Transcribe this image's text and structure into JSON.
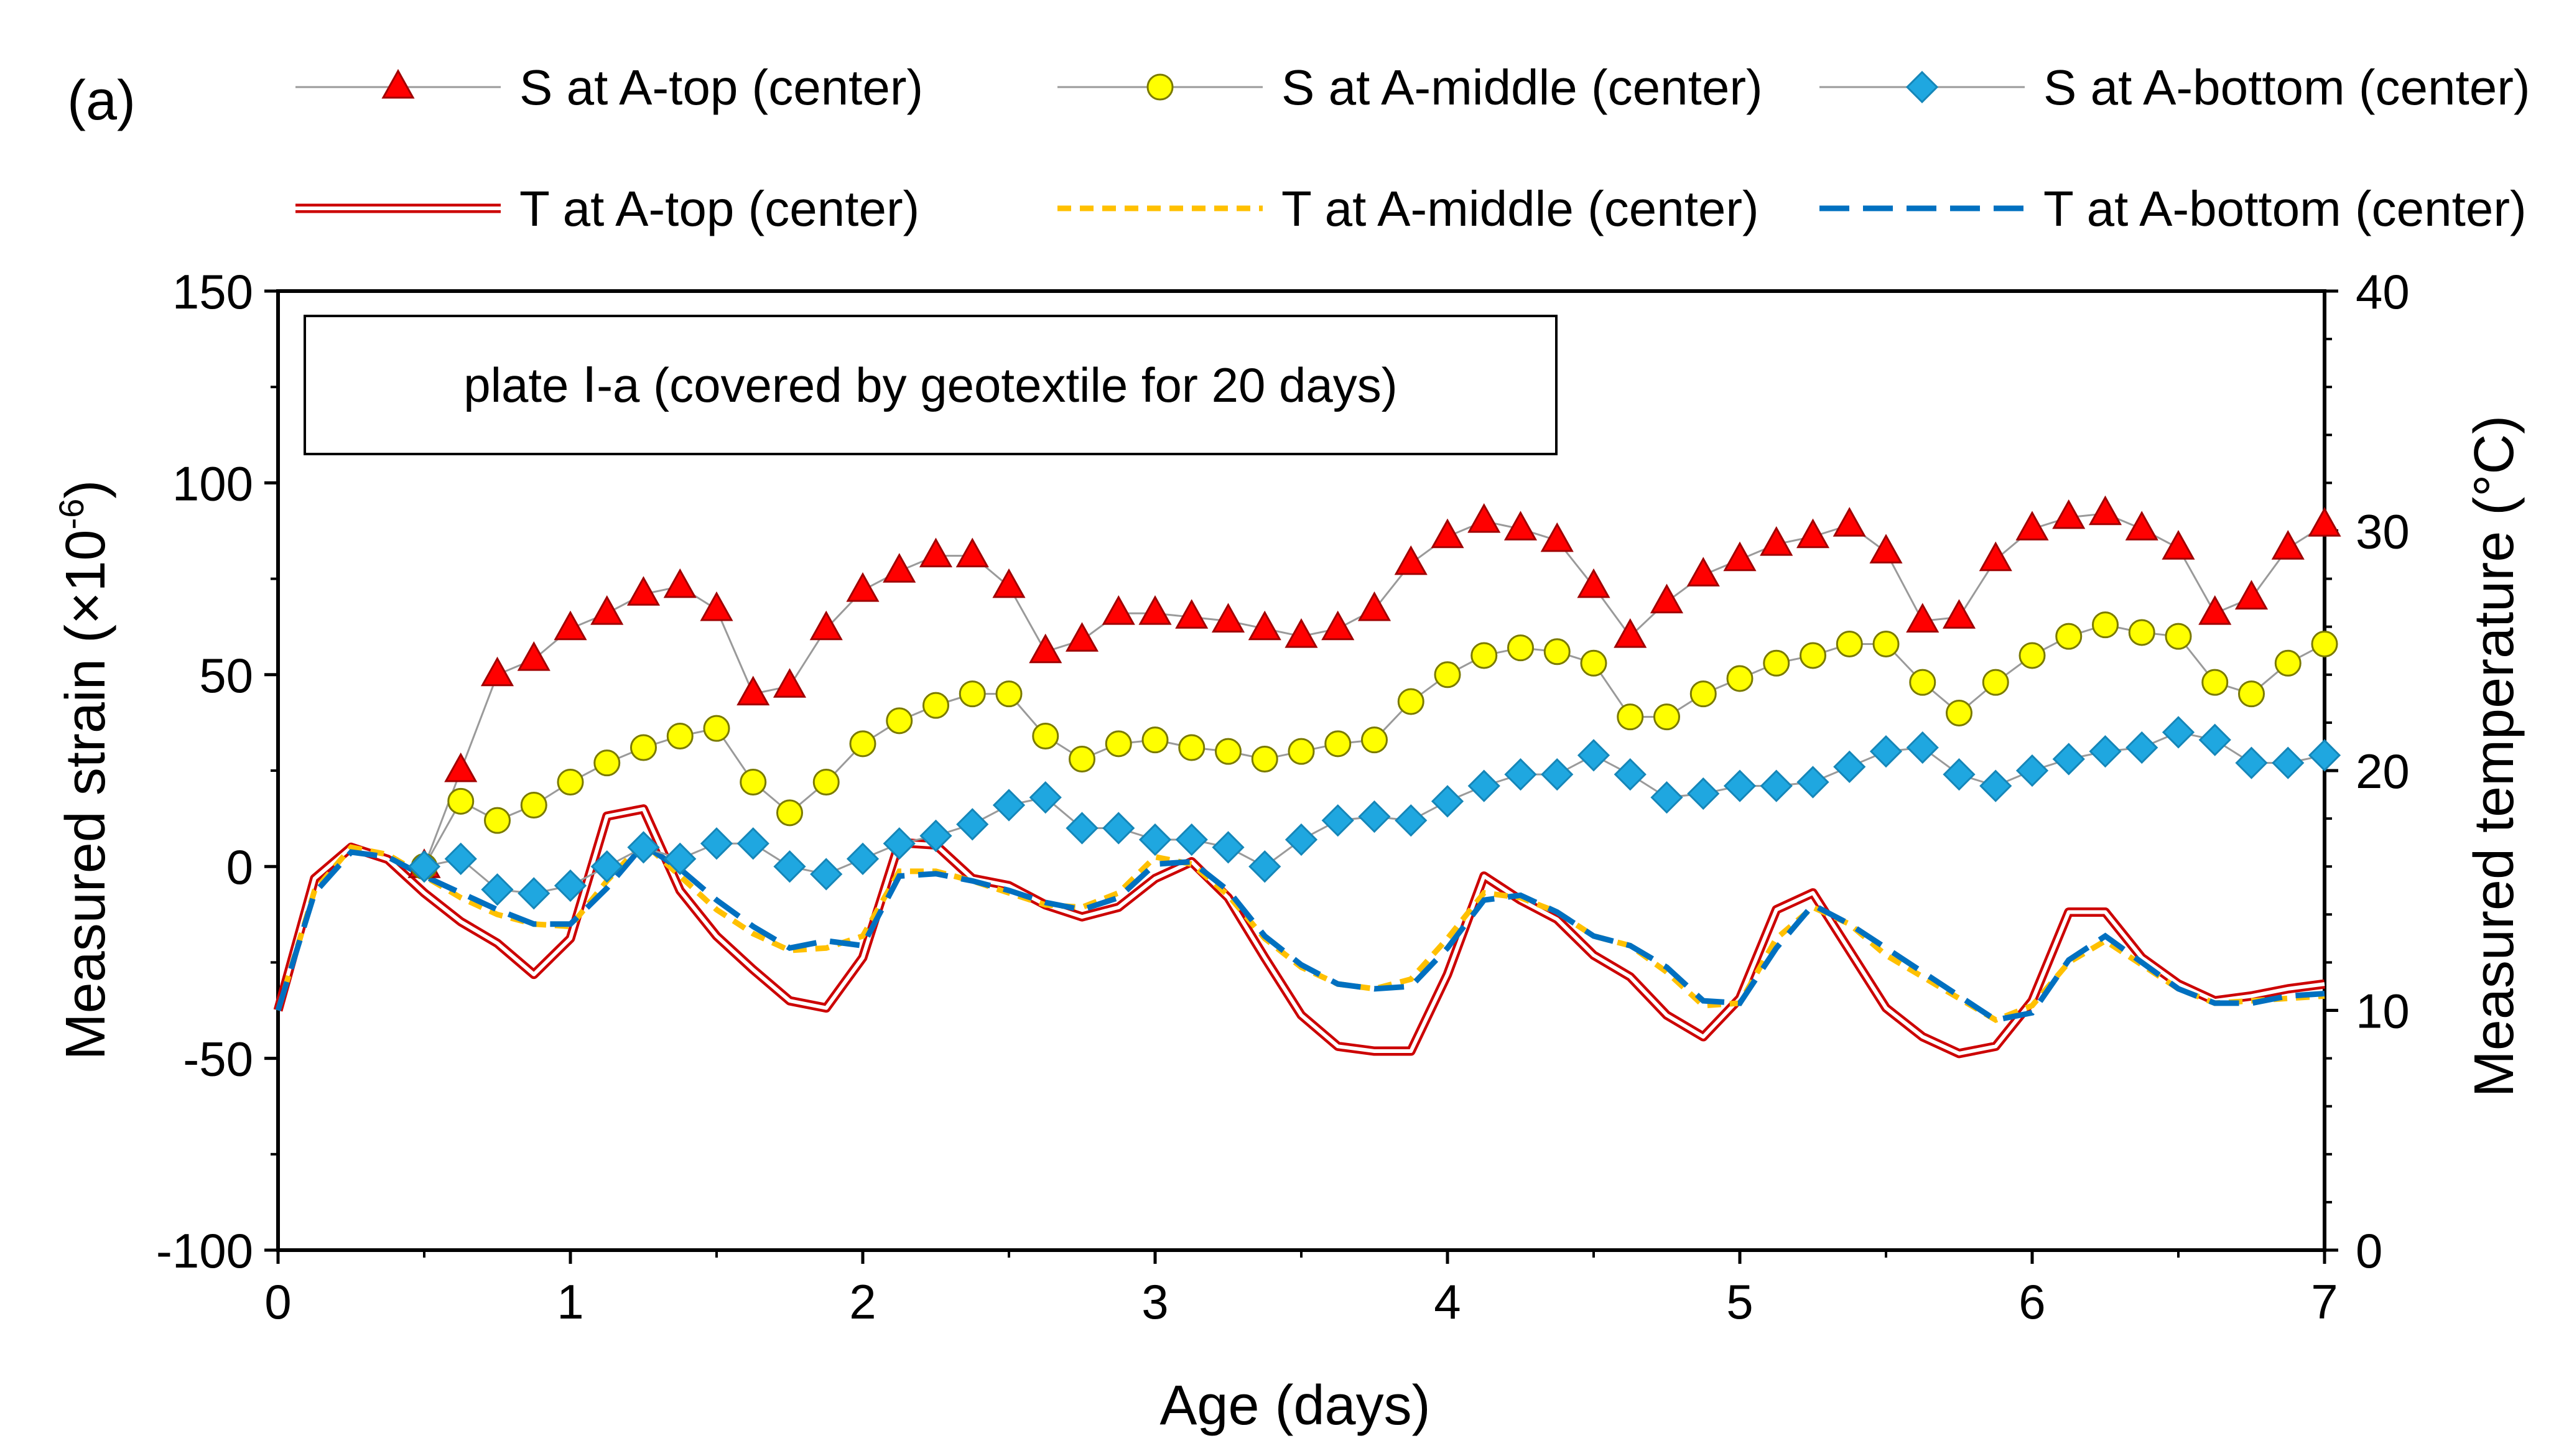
{
  "panel_label": "(a)",
  "chart_data": {
    "type": "line",
    "title": "",
    "annotation": "plate Ⅰ-a (covered by geotextile for 20 days)",
    "xlabel": "Age (days)",
    "ylabel": "Measured strain (×10",
    "ylabel_sup": "-6",
    "ylabel_end": ")",
    "y2label": "Measured temperature (°C)",
    "xlim": [
      0,
      7
    ],
    "ylim": [
      -100,
      150
    ],
    "y2lim": [
      0,
      40
    ],
    "xticks": [
      "0",
      "1",
      "2",
      "3",
      "4",
      "5",
      "6",
      "7"
    ],
    "yticks": [
      "150",
      "100",
      "50",
      "0",
      "-50",
      "-100"
    ],
    "y2ticks": [
      "40",
      "30",
      "20",
      "10",
      "0"
    ],
    "legend_position": "top",
    "strain_x": [
      0.5,
      0.625,
      0.75,
      0.875,
      1.0,
      1.125,
      1.25,
      1.375,
      1.5,
      1.625,
      1.75,
      1.875,
      2.0,
      2.125,
      2.25,
      2.375,
      2.5,
      2.625,
      2.75,
      2.875,
      3.0,
      3.125,
      3.25,
      3.375,
      3.5,
      3.625,
      3.75,
      3.875,
      4.0,
      4.125,
      4.25,
      4.375,
      4.5,
      4.625,
      4.75,
      4.875,
      5.0,
      5.125,
      5.25,
      5.375,
      5.5,
      5.625,
      5.75,
      5.875,
      6.0,
      6.125,
      6.25,
      6.375,
      6.5,
      6.625,
      6.75,
      6.875,
      7.0
    ],
    "temp_x": [
      0.0,
      0.125,
      0.25,
      0.375,
      0.5,
      0.625,
      0.75,
      0.875,
      1.0,
      1.125,
      1.25,
      1.375,
      1.5,
      1.625,
      1.75,
      1.875,
      2.0,
      2.125,
      2.25,
      2.375,
      2.5,
      2.625,
      2.75,
      2.875,
      3.0,
      3.125,
      3.25,
      3.375,
      3.5,
      3.625,
      3.75,
      3.875,
      4.0,
      4.125,
      4.25,
      4.375,
      4.5,
      4.625,
      4.75,
      4.875,
      5.0,
      5.125,
      5.25,
      5.375,
      5.5,
      5.625,
      5.75,
      5.875,
      6.0,
      6.125,
      6.25,
      6.375,
      6.5,
      6.625,
      6.75,
      6.875,
      7.0
    ],
    "series": [
      {
        "name": "S at A-top (center)",
        "kind": "strain",
        "marker": "triangle",
        "color": "#ff0000",
        "axis": "left",
        "values": [
          0,
          25,
          50,
          54,
          62,
          66,
          71,
          73,
          67,
          45,
          47,
          62,
          72,
          77,
          81,
          81,
          73,
          56,
          59,
          66,
          66,
          65,
          64,
          62,
          60,
          62,
          67,
          79,
          86,
          90,
          88,
          85,
          73,
          60,
          69,
          76,
          80,
          84,
          86,
          89,
          82,
          64,
          65,
          80,
          88,
          91,
          92,
          88,
          83,
          66,
          70,
          83,
          89
        ]
      },
      {
        "name": "S at A-middle (center)",
        "kind": "strain",
        "marker": "circle",
        "color": "#ffff00",
        "axis": "left",
        "values": [
          0,
          17,
          12,
          16,
          22,
          27,
          31,
          34,
          36,
          22,
          14,
          22,
          32,
          38,
          42,
          45,
          45,
          34,
          28,
          32,
          33,
          31,
          30,
          28,
          30,
          32,
          33,
          43,
          50,
          55,
          57,
          56,
          53,
          39,
          39,
          45,
          49,
          53,
          55,
          58,
          58,
          48,
          40,
          48,
          55,
          60,
          63,
          61,
          60,
          48,
          45,
          53,
          58
        ]
      },
      {
        "name": "S at A-bottom (center)",
        "kind": "strain",
        "marker": "diamond",
        "color": "#1fa7e0",
        "axis": "left",
        "values": [
          0,
          2,
          -6,
          -7,
          -5,
          0,
          5,
          2,
          6,
          6,
          0,
          -2,
          2,
          6,
          8,
          11,
          16,
          18,
          10,
          10,
          7,
          7,
          5,
          0,
          7,
          12,
          13,
          12,
          17,
          21,
          24,
          24,
          29,
          24,
          18,
          19,
          21,
          21,
          22,
          26,
          30,
          31,
          24,
          21,
          25,
          28,
          30,
          31,
          35,
          33,
          27,
          27,
          29
        ]
      },
      {
        "name": "T at A-top (center)",
        "kind": "temp",
        "style": "double",
        "color": "#cc0000",
        "axis": "right",
        "values": [
          10.0,
          15.5,
          16.8,
          16.3,
          14.9,
          13.7,
          12.8,
          11.5,
          13.0,
          18.1,
          18.4,
          15.0,
          13.1,
          11.7,
          10.4,
          10.1,
          12.2,
          17.0,
          16.9,
          15.5,
          15.2,
          14.4,
          13.9,
          14.3,
          15.5,
          16.2,
          14.7,
          12.2,
          9.8,
          8.5,
          8.3,
          8.3,
          11.5,
          15.6,
          14.6,
          13.8,
          12.3,
          11.4,
          9.8,
          8.9,
          10.5,
          14.2,
          14.9,
          12.5,
          10.1,
          8.9,
          8.2,
          8.5,
          10.4,
          14.1,
          14.1,
          12.2,
          11.1,
          10.4,
          10.6,
          10.9,
          11.1
        ]
      },
      {
        "name": "T at A-middle (center)",
        "kind": "temp",
        "style": "dash",
        "color": "#ffc000",
        "axis": "right",
        "values": [
          10.0,
          15.0,
          16.8,
          16.5,
          15.6,
          14.7,
          14.0,
          13.6,
          13.5,
          15.4,
          17.0,
          15.6,
          14.2,
          13.2,
          12.5,
          12.6,
          13.1,
          15.8,
          15.8,
          15.4,
          14.9,
          14.4,
          14.3,
          14.9,
          16.4,
          16.1,
          14.8,
          13.0,
          11.8,
          11.1,
          10.9,
          11.3,
          13.0,
          14.9,
          14.7,
          14.1,
          13.1,
          12.7,
          11.6,
          10.2,
          10.3,
          13.0,
          14.3,
          13.6,
          12.3,
          11.4,
          10.5,
          9.6,
          10.2,
          12.0,
          12.9,
          11.9,
          10.9,
          10.3,
          10.4,
          10.5,
          10.6
        ]
      },
      {
        "name": "T at A-bottom (center)",
        "kind": "temp",
        "style": "longdash",
        "color": "#0070c0",
        "axis": "right",
        "values": [
          10.0,
          14.9,
          16.6,
          16.4,
          15.6,
          14.9,
          14.2,
          13.6,
          13.6,
          15.1,
          16.9,
          15.9,
          14.6,
          13.5,
          12.6,
          12.9,
          12.7,
          15.6,
          15.7,
          15.4,
          15.0,
          14.5,
          14.2,
          14.7,
          16.1,
          16.2,
          15.0,
          13.1,
          11.9,
          11.1,
          10.9,
          11.0,
          12.6,
          14.6,
          14.8,
          14.1,
          13.1,
          12.7,
          11.8,
          10.4,
          10.3,
          12.6,
          14.4,
          13.6,
          12.6,
          11.6,
          10.6,
          9.6,
          9.9,
          12.1,
          13.1,
          12.0,
          10.9,
          10.3,
          10.3,
          10.6,
          10.7
        ]
      }
    ]
  }
}
